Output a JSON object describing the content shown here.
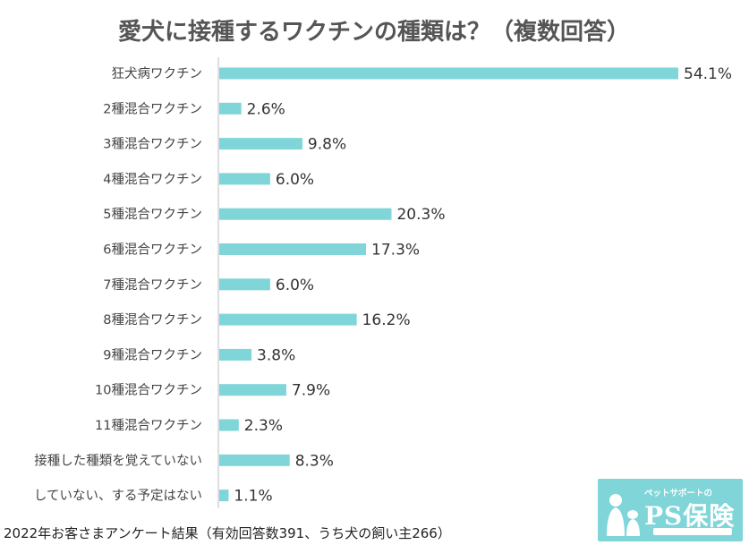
{
  "chart_data": {
    "type": "bar",
    "orientation": "horizontal",
    "title": "愛犬に接種するワクチンの種類は？（複数回答）",
    "categories": [
      "狂犬病ワクチン",
      "2種混合ワクチン",
      "3種混合ワクチン",
      "4種混合ワクチン",
      "5種混合ワクチン",
      "6種混合ワクチン",
      "7種混合ワクチン",
      "8種混合ワクチン",
      "9種混合ワクチン",
      "10種混合ワクチン",
      "11種混合ワクチン",
      "接種した種類を覚えていない",
      "していない、する予定はない"
    ],
    "values": [
      54.1,
      2.6,
      9.8,
      6.0,
      20.3,
      17.3,
      6.0,
      16.2,
      3.8,
      7.9,
      2.3,
      8.3,
      1.1
    ],
    "value_labels": [
      "54.1%",
      "2.6%",
      "9.8%",
      "6.0%",
      "20.3%",
      "17.3%",
      "6.0%",
      "16.2%",
      "3.8%",
      "7.9%",
      "2.3%",
      "8.3%",
      "1.1%"
    ],
    "xlim": [
      0,
      54.1
    ],
    "grid": false,
    "bar_color": "#7fd5d8",
    "axis_color": "#bfbfbf"
  },
  "footnote": "2022年お客さまアンケート結果（有効回答数391、うち犬の飼い主266）",
  "logo": {
    "subtitle": "ペットサポートの",
    "name": "PS保険",
    "color": "#7fd5d8"
  }
}
